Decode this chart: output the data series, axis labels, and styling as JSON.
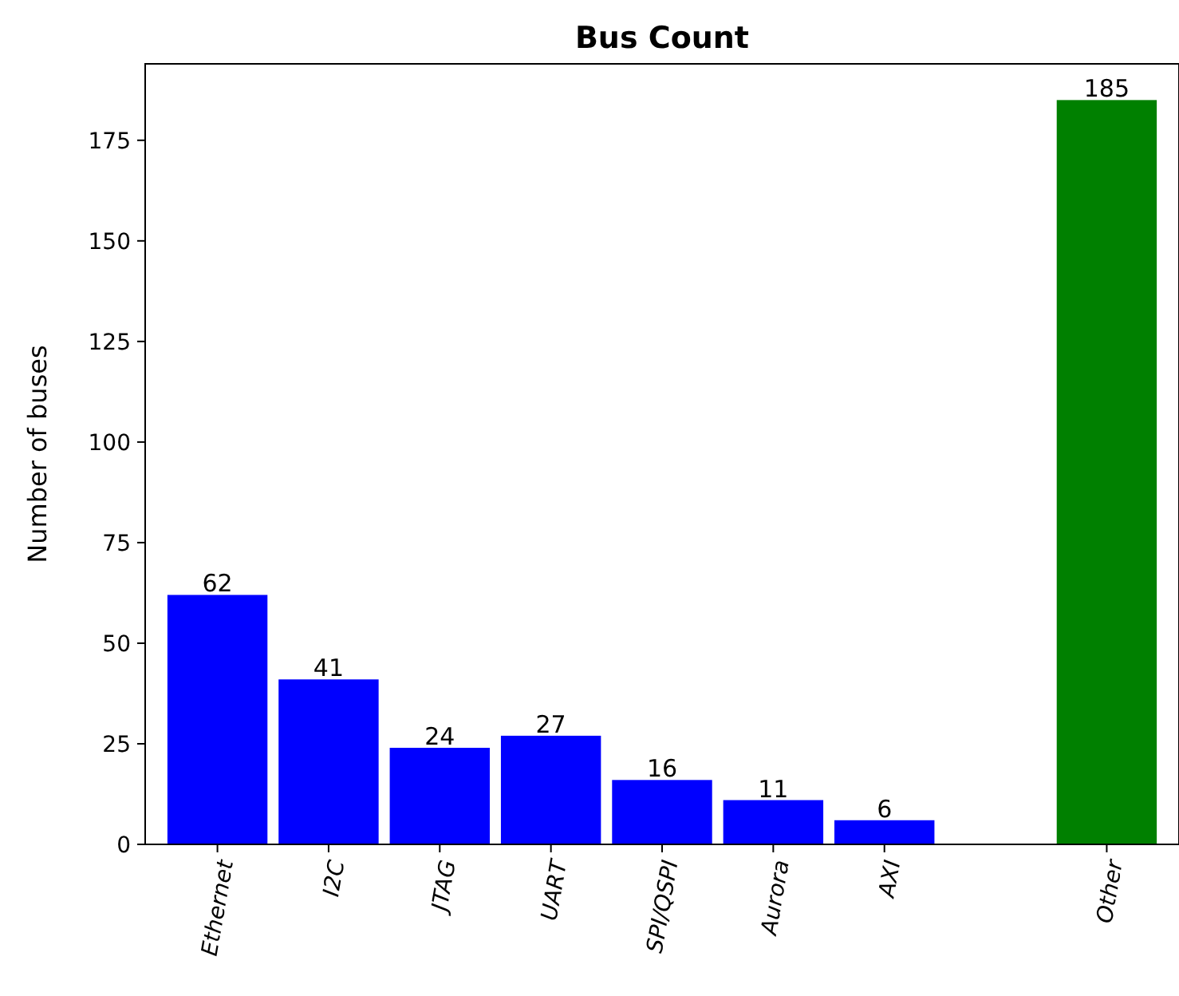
{
  "chart_data": {
    "type": "bar",
    "title": "Bus Count",
    "ylabel": "Number of buses",
    "categories": [
      "Ethernet",
      "I2C",
      "JTAG",
      "UART",
      "SPI/QSPI",
      "Aurora",
      "AXI",
      null,
      "Other"
    ],
    "values": [
      62,
      41,
      24,
      27,
      16,
      11,
      6,
      null,
      185
    ],
    "colors": [
      "#0000ff",
      "#0000ff",
      "#0000ff",
      "#0000ff",
      "#0000ff",
      "#0000ff",
      "#0000ff",
      null,
      "#008000"
    ],
    "ylim": [
      0,
      194
    ],
    "yticks": [
      0,
      25,
      50,
      75,
      100,
      125,
      150,
      175
    ],
    "data_labels": true,
    "grid": false
  }
}
